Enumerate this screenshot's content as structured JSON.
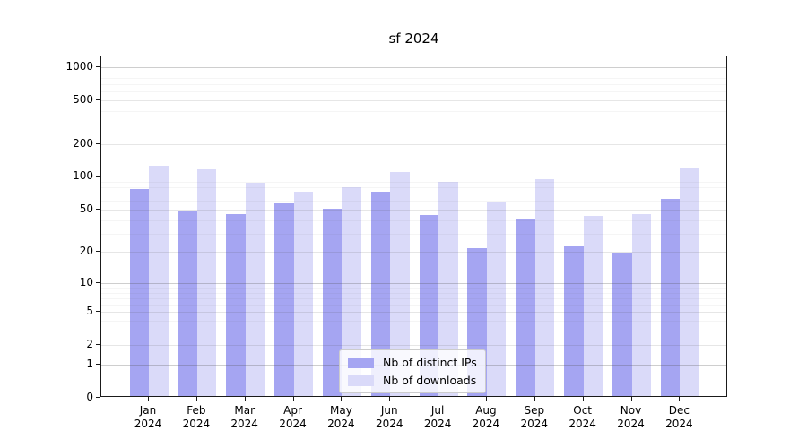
{
  "chart_data": {
    "type": "bar",
    "title": "sf 2024",
    "xlabel": "",
    "ylabel": "",
    "scale": "log10(1+value), zero-anchored",
    "grid": "both (major lines at powers of 10, faint minor log lines)",
    "ylim": [
      0,
      1250
    ],
    "yticks": [
      0,
      1,
      2,
      5,
      10,
      20,
      50,
      100,
      200,
      500,
      1000
    ],
    "major_grid_values": [
      1,
      10,
      100,
      1000
    ],
    "mid_grid_values": [
      2,
      5,
      20,
      50,
      200,
      500
    ],
    "minor_grid_values": [
      3,
      4,
      6,
      7,
      8,
      9,
      30,
      40,
      60,
      70,
      80,
      90,
      300,
      400,
      600,
      700,
      800,
      900
    ],
    "categories": [
      "Jan\n2024",
      "Feb\n2024",
      "Mar\n2024",
      "Apr\n2024",
      "May\n2024",
      "Jun\n2024",
      "Jul\n2024",
      "Aug\n2024",
      "Sep\n2024",
      "Oct\n2024",
      "Nov\n2024",
      "Dec\n2024"
    ],
    "series": [
      {
        "name": "Nb of distinct IPs",
        "color": "#a5a5f2",
        "values": [
          75,
          47,
          44,
          55,
          49,
          71,
          43,
          21,
          40,
          22,
          19,
          61
        ]
      },
      {
        "name": "Nb of downloads",
        "color": "#dadaf9",
        "values": [
          121,
          113,
          85,
          70,
          77,
          106,
          87,
          57,
          91,
          42,
          44,
          115
        ]
      }
    ],
    "legend_position": "inside bottom-center"
  }
}
